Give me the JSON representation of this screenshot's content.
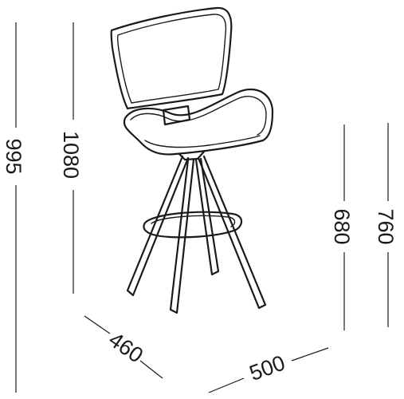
{
  "dimensions": {
    "seat_height_total": "995",
    "overall_height": "1080",
    "footrest_height": "680",
    "seat_height": "760",
    "depth": "460",
    "width": "500"
  }
}
